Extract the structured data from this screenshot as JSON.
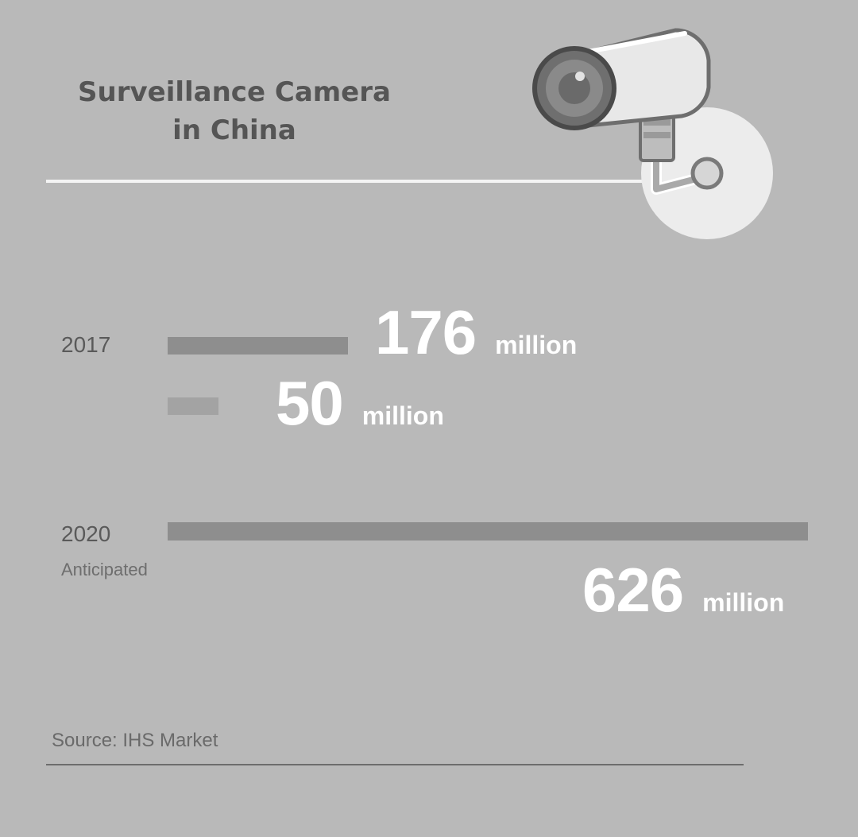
{
  "chart_data": {
    "type": "bar",
    "title_lines": [
      "Surveillance Camera",
      "in China"
    ],
    "rows": [
      {
        "year": "2017",
        "subtitle": "",
        "value": 176,
        "unit": "million",
        "color": "#8e8e8e"
      },
      {
        "year": "",
        "subtitle": "",
        "value": 50,
        "unit": "million",
        "color": "#a3a3a3"
      },
      {
        "year": "2020",
        "subtitle": "Anticipated",
        "value": 626,
        "unit": "million",
        "color": "#8e8e8e"
      }
    ],
    "source": "Source: IHS Market"
  },
  "colors": {
    "background": "#b9b9b9",
    "value_text": "#ffffff",
    "rule": "#f4f4f4"
  },
  "icons": [
    "surveillance-camera-icon"
  ]
}
